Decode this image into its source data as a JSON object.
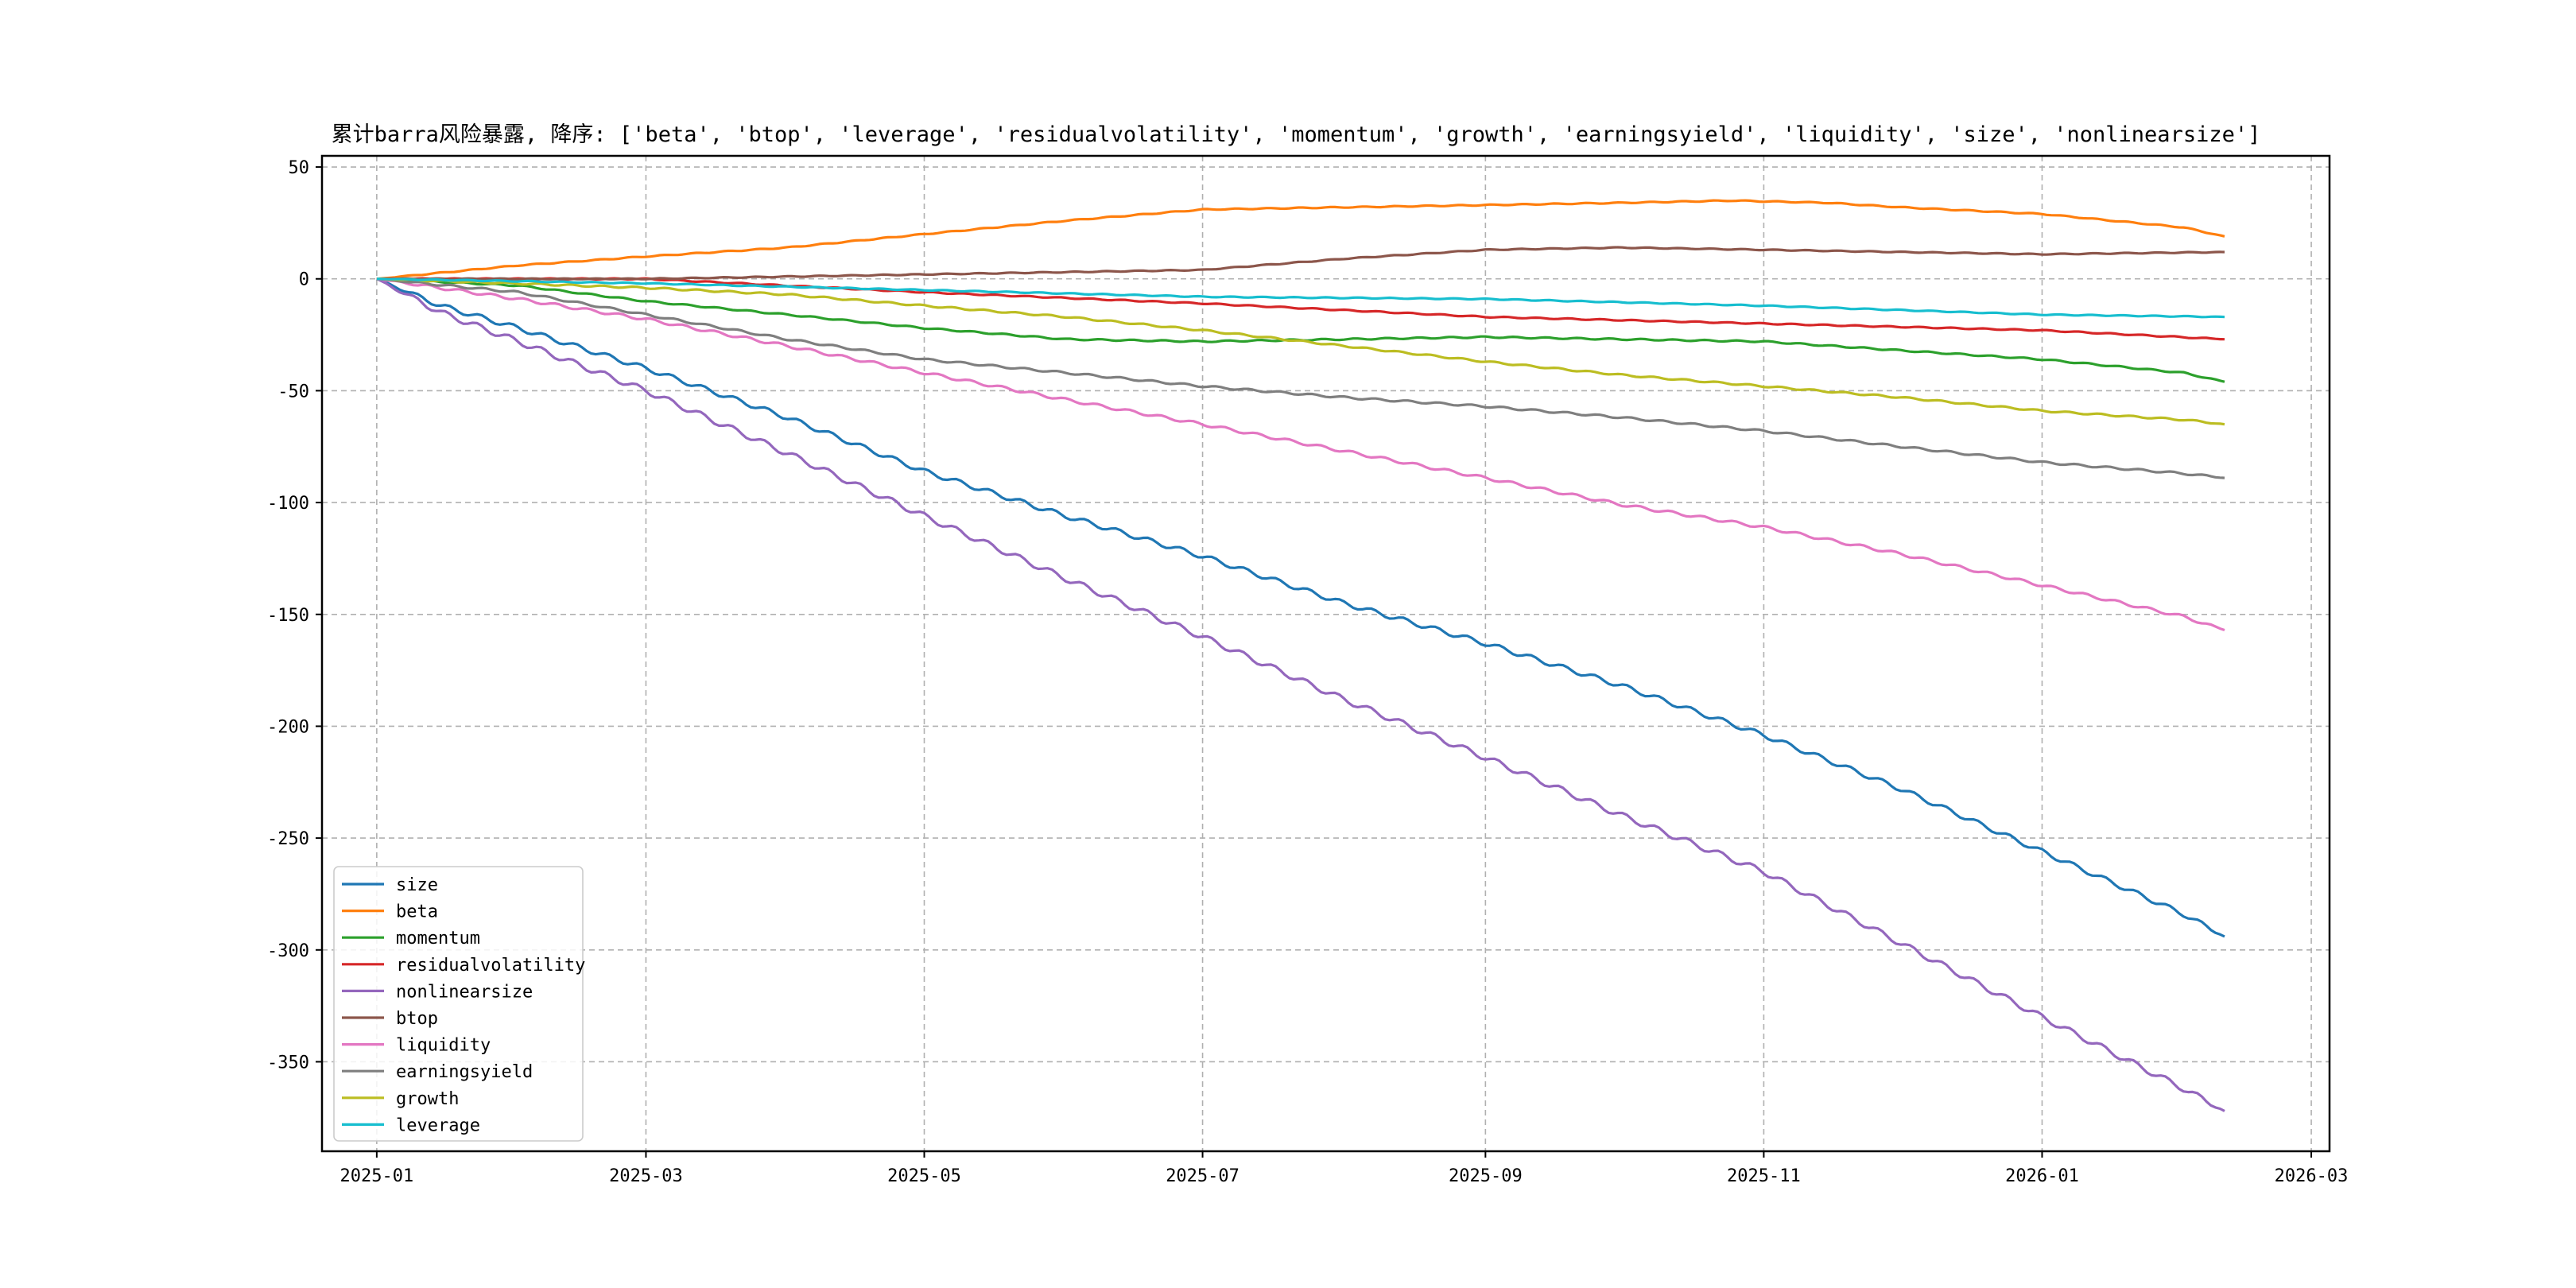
{
  "chart_data": {
    "type": "line",
    "title": "累计barra风险暴露, 降序: ['beta', 'btop', 'leverage', 'residualvolatility', 'momentum', 'growth', 'earningsyield', 'liquidity', 'size', 'nonlinearsize']",
    "xlabel": "",
    "ylabel": "",
    "x_start": "2025-01-01",
    "x_end": "2026-02-10",
    "xlim": [
      "2024-12-20",
      "2026-03-05"
    ],
    "ylim": [
      -390,
      55
    ],
    "grid": true,
    "legend_position": "lower-left",
    "x_ticks": [
      "2025-01",
      "2025-03",
      "2025-05",
      "2025-07",
      "2025-09",
      "2025-11",
      "2026-01",
      "2026-03"
    ],
    "y_ticks": [
      50,
      0,
      -50,
      -100,
      -150,
      -200,
      -250,
      -300,
      -350
    ],
    "series": [
      {
        "name": "size",
        "color": "#1f77b4",
        "points": [
          [
            "2025-01-01",
            0
          ],
          [
            "2025-01-15",
            -12
          ],
          [
            "2025-02-01",
            -22
          ],
          [
            "2025-03-01",
            -40
          ],
          [
            "2025-04-01",
            -62
          ],
          [
            "2025-05-01",
            -86
          ],
          [
            "2025-06-01",
            -106
          ],
          [
            "2025-07-01",
            -124
          ],
          [
            "2025-08-01",
            -145
          ],
          [
            "2025-09-01",
            -163
          ],
          [
            "2025-10-01",
            -182
          ],
          [
            "2025-11-01",
            -204
          ],
          [
            "2025-12-01",
            -228
          ],
          [
            "2026-01-01",
            -256
          ],
          [
            "2026-02-01",
            -284
          ],
          [
            "2026-02-10",
            -294
          ]
        ]
      },
      {
        "name": "beta",
        "color": "#ff7f0e",
        "points": [
          [
            "2025-01-01",
            0
          ],
          [
            "2025-02-01",
            6
          ],
          [
            "2025-03-01",
            10
          ],
          [
            "2025-04-01",
            14
          ],
          [
            "2025-05-01",
            20
          ],
          [
            "2025-06-01",
            26
          ],
          [
            "2025-07-01",
            31
          ],
          [
            "2025-08-01",
            32
          ],
          [
            "2025-09-01",
            33
          ],
          [
            "2025-10-01",
            34
          ],
          [
            "2025-10-25",
            35
          ],
          [
            "2025-11-15",
            34
          ],
          [
            "2025-12-01",
            32
          ],
          [
            "2026-01-01",
            29
          ],
          [
            "2026-02-01",
            23
          ],
          [
            "2026-02-10",
            19
          ]
        ]
      },
      {
        "name": "momentum",
        "color": "#2ca02c",
        "points": [
          [
            "2025-01-01",
            0
          ],
          [
            "2025-02-01",
            -3
          ],
          [
            "2025-03-01",
            -10
          ],
          [
            "2025-04-01",
            -16
          ],
          [
            "2025-05-01",
            -22
          ],
          [
            "2025-06-01",
            -27
          ],
          [
            "2025-07-01",
            -28
          ],
          [
            "2025-08-01",
            -27
          ],
          [
            "2025-09-01",
            -26
          ],
          [
            "2025-10-01",
            -27
          ],
          [
            "2025-11-01",
            -28
          ],
          [
            "2025-12-01",
            -32
          ],
          [
            "2026-01-01",
            -36
          ],
          [
            "2026-02-01",
            -42
          ],
          [
            "2026-02-10",
            -46
          ]
        ]
      },
      {
        "name": "residualvolatility",
        "color": "#d62728",
        "points": [
          [
            "2025-01-01",
            0
          ],
          [
            "2025-03-01",
            0
          ],
          [
            "2025-05-01",
            -6
          ],
          [
            "2025-07-01",
            -11
          ],
          [
            "2025-09-01",
            -17
          ],
          [
            "2025-11-01",
            -20
          ],
          [
            "2026-01-01",
            -23
          ],
          [
            "2026-02-10",
            -27
          ]
        ]
      },
      {
        "name": "nonlinearsize",
        "color": "#9467bd",
        "points": [
          [
            "2025-01-01",
            0
          ],
          [
            "2025-01-15",
            -15
          ],
          [
            "2025-02-01",
            -28
          ],
          [
            "2025-03-01",
            -50
          ],
          [
            "2025-04-01",
            -78
          ],
          [
            "2025-05-01",
            -106
          ],
          [
            "2025-06-01",
            -134
          ],
          [
            "2025-07-01",
            -160
          ],
          [
            "2025-08-01",
            -188
          ],
          [
            "2025-09-01",
            -214
          ],
          [
            "2025-10-01",
            -240
          ],
          [
            "2025-11-01",
            -265
          ],
          [
            "2025-12-01",
            -297
          ],
          [
            "2026-01-01",
            -330
          ],
          [
            "2026-02-01",
            -362
          ],
          [
            "2026-02-10",
            -372
          ]
        ]
      },
      {
        "name": "btop",
        "color": "#8c564b",
        "points": [
          [
            "2025-01-01",
            0
          ],
          [
            "2025-03-01",
            0
          ],
          [
            "2025-05-01",
            2
          ],
          [
            "2025-07-01",
            4
          ],
          [
            "2025-08-01",
            9
          ],
          [
            "2025-09-01",
            13
          ],
          [
            "2025-10-01",
            14
          ],
          [
            "2025-11-01",
            13
          ],
          [
            "2025-12-01",
            12
          ],
          [
            "2026-01-01",
            11
          ],
          [
            "2026-02-10",
            12
          ]
        ]
      },
      {
        "name": "liquidity",
        "color": "#e377c2",
        "points": [
          [
            "2025-01-01",
            0
          ],
          [
            "2025-02-01",
            -9
          ],
          [
            "2025-03-01",
            -18
          ],
          [
            "2025-04-01",
            -30
          ],
          [
            "2025-05-01",
            -42
          ],
          [
            "2025-06-01",
            -54
          ],
          [
            "2025-07-01",
            -65
          ],
          [
            "2025-08-01",
            -77
          ],
          [
            "2025-09-01",
            -89
          ],
          [
            "2025-10-01",
            -101
          ],
          [
            "2025-11-01",
            -111
          ],
          [
            "2025-12-01",
            -123
          ],
          [
            "2026-01-01",
            -137
          ],
          [
            "2026-02-01",
            -151
          ],
          [
            "2026-02-10",
            -157
          ]
        ]
      },
      {
        "name": "earningsyield",
        "color": "#7f7f7f",
        "points": [
          [
            "2025-01-01",
            0
          ],
          [
            "2025-02-01",
            -6
          ],
          [
            "2025-03-01",
            -16
          ],
          [
            "2025-04-01",
            -27
          ],
          [
            "2025-05-01",
            -36
          ],
          [
            "2025-06-01",
            -42
          ],
          [
            "2025-07-01",
            -48
          ],
          [
            "2025-08-01",
            -53
          ],
          [
            "2025-09-01",
            -57
          ],
          [
            "2025-10-01",
            -62
          ],
          [
            "2025-11-01",
            -68
          ],
          [
            "2025-12-01",
            -75
          ],
          [
            "2026-01-01",
            -82
          ],
          [
            "2026-02-01",
            -87
          ],
          [
            "2026-02-10",
            -89
          ]
        ]
      },
      {
        "name": "growth",
        "color": "#bcbd22",
        "points": [
          [
            "2025-01-01",
            0
          ],
          [
            "2025-03-01",
            -4
          ],
          [
            "2025-04-01",
            -7
          ],
          [
            "2025-05-01",
            -12
          ],
          [
            "2025-06-01",
            -17
          ],
          [
            "2025-07-01",
            -23
          ],
          [
            "2025-08-01",
            -30
          ],
          [
            "2025-09-01",
            -37
          ],
          [
            "2025-10-01",
            -43
          ],
          [
            "2025-11-01",
            -48
          ],
          [
            "2025-12-01",
            -53
          ],
          [
            "2026-01-01",
            -59
          ],
          [
            "2026-02-01",
            -63
          ],
          [
            "2026-02-10",
            -65
          ]
        ]
      },
      {
        "name": "leverage",
        "color": "#17becf",
        "points": [
          [
            "2025-01-01",
            0
          ],
          [
            "2025-03-01",
            -2
          ],
          [
            "2025-05-01",
            -5
          ],
          [
            "2025-07-01",
            -8
          ],
          [
            "2025-09-01",
            -9
          ],
          [
            "2025-11-01",
            -12
          ],
          [
            "2026-01-01",
            -16
          ],
          [
            "2026-02-10",
            -17
          ]
        ]
      }
    ]
  }
}
